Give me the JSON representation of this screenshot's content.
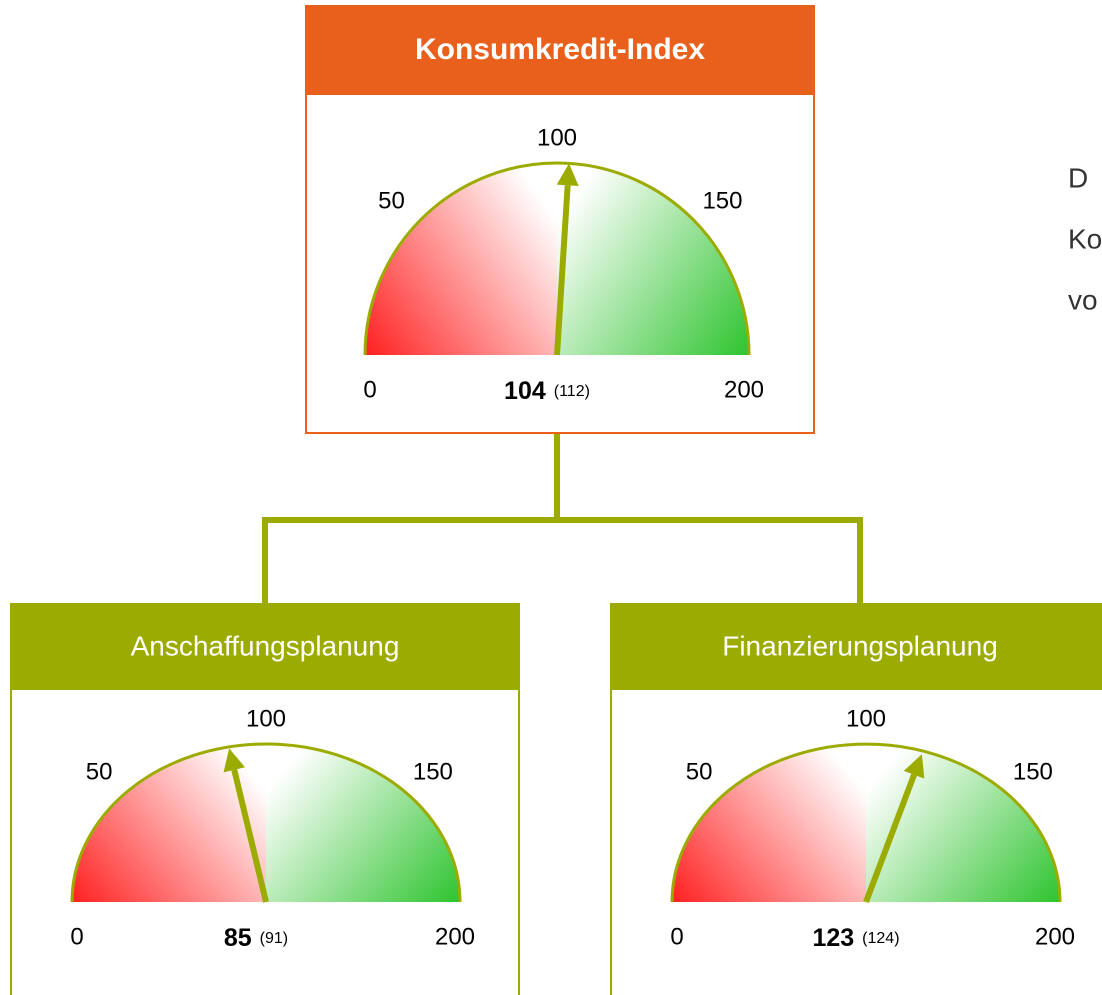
{
  "nodes": [
    {
      "title": "Konsumkredit-Index",
      "value": 104,
      "previous": "(112)",
      "scale": [
        0,
        50,
        100,
        150,
        200
      ]
    },
    {
      "title": "Anschaffungsplanung",
      "value": 85,
      "previous": "(91)",
      "scale": [
        0,
        50,
        100,
        150,
        200
      ]
    },
    {
      "title": "Finanzierungsplanung",
      "value": 123,
      "previous": "(124)",
      "scale": [
        0,
        50,
        100,
        150,
        200
      ]
    }
  ],
  "side_text": [
    "D",
    "Ko",
    "vo"
  ]
}
